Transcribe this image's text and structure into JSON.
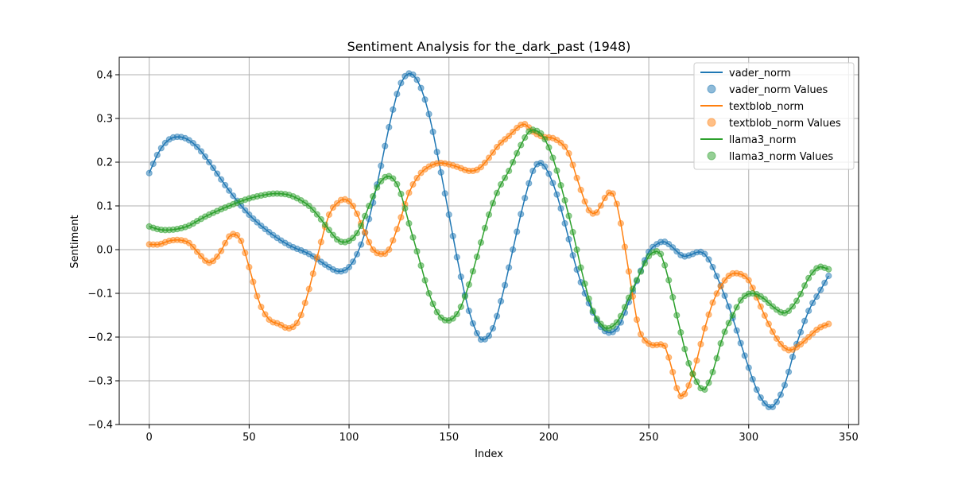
{
  "chart_data": {
    "type": "line",
    "title": "Sentiment Analysis for the_dark_past (1948)",
    "xlabel": "Index",
    "ylabel": "Sentiment",
    "xlim": [
      -15,
      355
    ],
    "ylim": [
      -0.4,
      0.44
    ],
    "xticks": [
      0,
      50,
      100,
      150,
      200,
      250,
      300,
      350
    ],
    "yticks": [
      -0.4,
      -0.3,
      -0.2,
      -0.1,
      0.0,
      0.1,
      0.2,
      0.3,
      0.4
    ],
    "ytick_labels": [
      "−0.4",
      "−0.3",
      "−0.2",
      "−0.1",
      "0.0",
      "0.1",
      "0.2",
      "0.3",
      "0.4"
    ],
    "grid": true,
    "legend_position": "top-right",
    "sample_step": 2,
    "x_max": 340,
    "series": [
      {
        "name": "vader_norm",
        "scatter_name": "vader_norm Values",
        "color": "#1f77b4",
        "keypoints": [
          [
            0,
            0.175
          ],
          [
            5,
            0.225
          ],
          [
            10,
            0.252
          ],
          [
            15,
            0.258
          ],
          [
            20,
            0.25
          ],
          [
            25,
            0.23
          ],
          [
            30,
            0.2
          ],
          [
            40,
            0.135
          ],
          [
            50,
            0.08
          ],
          [
            60,
            0.04
          ],
          [
            70,
            0.01
          ],
          [
            80,
            -0.01
          ],
          [
            90,
            -0.04
          ],
          [
            95,
            -0.05
          ],
          [
            100,
            -0.04
          ],
          [
            105,
            0.0
          ],
          [
            110,
            0.07
          ],
          [
            115,
            0.17
          ],
          [
            120,
            0.28
          ],
          [
            125,
            0.37
          ],
          [
            130,
            0.403
          ],
          [
            135,
            0.38
          ],
          [
            140,
            0.31
          ],
          [
            145,
            0.2
          ],
          [
            150,
            0.08
          ],
          [
            155,
            -0.04
          ],
          [
            160,
            -0.14
          ],
          [
            165,
            -0.2
          ],
          [
            168,
            -0.205
          ],
          [
            172,
            -0.18
          ],
          [
            177,
            -0.1
          ],
          [
            182,
            0.0
          ],
          [
            187,
            0.1
          ],
          [
            192,
            0.18
          ],
          [
            195,
            0.198
          ],
          [
            198,
            0.19
          ],
          [
            203,
            0.14
          ],
          [
            208,
            0.06
          ],
          [
            213,
            -0.03
          ],
          [
            218,
            -0.1
          ],
          [
            225,
            -0.17
          ],
          [
            230,
            -0.19
          ],
          [
            235,
            -0.175
          ],
          [
            240,
            -0.12
          ],
          [
            245,
            -0.06
          ],
          [
            250,
            -0.005
          ],
          [
            255,
            0.015
          ],
          [
            258,
            0.018
          ],
          [
            262,
            0.005
          ],
          [
            267,
            -0.015
          ],
          [
            272,
            -0.01
          ],
          [
            275,
            -0.005
          ],
          [
            278,
            -0.01
          ],
          [
            282,
            -0.04
          ],
          [
            290,
            -0.13
          ],
          [
            300,
            -0.27
          ],
          [
            305,
            -0.33
          ],
          [
            310,
            -0.36
          ],
          [
            313,
            -0.355
          ],
          [
            318,
            -0.31
          ],
          [
            323,
            -0.23
          ],
          [
            330,
            -0.14
          ],
          [
            335,
            -0.1
          ],
          [
            340,
            -0.06
          ]
        ]
      },
      {
        "name": "textblob_norm",
        "scatter_name": "textblob_norm Values",
        "color": "#ff7f0e",
        "keypoints": [
          [
            0,
            0.012
          ],
          [
            5,
            0.012
          ],
          [
            10,
            0.02
          ],
          [
            15,
            0.022
          ],
          [
            20,
            0.015
          ],
          [
            25,
            -0.01
          ],
          [
            30,
            -0.03
          ],
          [
            35,
            -0.01
          ],
          [
            40,
            0.03
          ],
          [
            43,
            0.035
          ],
          [
            46,
            0.02
          ],
          [
            50,
            -0.04
          ],
          [
            55,
            -0.12
          ],
          [
            60,
            -0.16
          ],
          [
            65,
            -0.17
          ],
          [
            70,
            -0.18
          ],
          [
            75,
            -0.16
          ],
          [
            80,
            -0.09
          ],
          [
            85,
            0.0
          ],
          [
            90,
            0.08
          ],
          [
            95,
            0.11
          ],
          [
            98,
            0.115
          ],
          [
            102,
            0.1
          ],
          [
            107,
            0.05
          ],
          [
            112,
            0.0
          ],
          [
            117,
            -0.01
          ],
          [
            120,
            0.0
          ],
          [
            125,
            0.06
          ],
          [
            130,
            0.13
          ],
          [
            135,
            0.17
          ],
          [
            140,
            0.19
          ],
          [
            145,
            0.198
          ],
          [
            150,
            0.195
          ],
          [
            155,
            0.188
          ],
          [
            160,
            0.18
          ],
          [
            165,
            0.185
          ],
          [
            170,
            0.21
          ],
          [
            175,
            0.24
          ],
          [
            180,
            0.26
          ],
          [
            185,
            0.282
          ],
          [
            188,
            0.287
          ],
          [
            192,
            0.27
          ],
          [
            197,
            0.258
          ],
          [
            202,
            0.255
          ],
          [
            207,
            0.24
          ],
          [
            210,
            0.22
          ],
          [
            215,
            0.15
          ],
          [
            220,
            0.09
          ],
          [
            224,
            0.085
          ],
          [
            227,
            0.11
          ],
          [
            230,
            0.13
          ],
          [
            233,
            0.12
          ],
          [
            236,
            0.06
          ],
          [
            240,
            -0.05
          ],
          [
            245,
            -0.18
          ],
          [
            250,
            -0.215
          ],
          [
            255,
            -0.218
          ],
          [
            258,
            -0.22
          ],
          [
            262,
            -0.28
          ],
          [
            265,
            -0.33
          ],
          [
            268,
            -0.33
          ],
          [
            273,
            -0.27
          ],
          [
            278,
            -0.18
          ],
          [
            283,
            -0.11
          ],
          [
            290,
            -0.06
          ],
          [
            295,
            -0.055
          ],
          [
            300,
            -0.07
          ],
          [
            305,
            -0.12
          ],
          [
            310,
            -0.17
          ],
          [
            315,
            -0.21
          ],
          [
            320,
            -0.23
          ],
          [
            325,
            -0.22
          ],
          [
            330,
            -0.2
          ],
          [
            335,
            -0.18
          ],
          [
            340,
            -0.17
          ]
        ]
      },
      {
        "name": "llama3_norm",
        "scatter_name": "llama3_norm Values",
        "color": "#2ca02c",
        "keypoints": [
          [
            0,
            0.053
          ],
          [
            5,
            0.046
          ],
          [
            10,
            0.045
          ],
          [
            15,
            0.048
          ],
          [
            20,
            0.055
          ],
          [
            25,
            0.068
          ],
          [
            30,
            0.08
          ],
          [
            40,
            0.1
          ],
          [
            50,
            0.117
          ],
          [
            60,
            0.127
          ],
          [
            65,
            0.128
          ],
          [
            70,
            0.125
          ],
          [
            75,
            0.115
          ],
          [
            80,
            0.1
          ],
          [
            85,
            0.075
          ],
          [
            90,
            0.045
          ],
          [
            95,
            0.02
          ],
          [
            100,
            0.02
          ],
          [
            105,
            0.045
          ],
          [
            110,
            0.1
          ],
          [
            115,
            0.15
          ],
          [
            120,
            0.168
          ],
          [
            125,
            0.14
          ],
          [
            130,
            0.06
          ],
          [
            135,
            -0.02
          ],
          [
            140,
            -0.1
          ],
          [
            145,
            -0.15
          ],
          [
            150,
            -0.162
          ],
          [
            155,
            -0.14
          ],
          [
            160,
            -0.08
          ],
          [
            165,
            0.0
          ],
          [
            170,
            0.08
          ],
          [
            175,
            0.14
          ],
          [
            180,
            0.18
          ],
          [
            185,
            0.23
          ],
          [
            190,
            0.27
          ],
          [
            193,
            0.273
          ],
          [
            197,
            0.26
          ],
          [
            202,
            0.21
          ],
          [
            207,
            0.13
          ],
          [
            212,
            0.04
          ],
          [
            217,
            -0.06
          ],
          [
            222,
            -0.14
          ],
          [
            227,
            -0.175
          ],
          [
            230,
            -0.18
          ],
          [
            235,
            -0.16
          ],
          [
            240,
            -0.11
          ],
          [
            245,
            -0.06
          ],
          [
            250,
            -0.015
          ],
          [
            253,
            -0.005
          ],
          [
            256,
            -0.01
          ],
          [
            260,
            -0.07
          ],
          [
            265,
            -0.17
          ],
          [
            270,
            -0.26
          ],
          [
            275,
            -0.31
          ],
          [
            278,
            -0.32
          ],
          [
            282,
            -0.28
          ],
          [
            287,
            -0.2
          ],
          [
            292,
            -0.15
          ],
          [
            297,
            -0.11
          ],
          [
            302,
            -0.1
          ],
          [
            307,
            -0.11
          ],
          [
            312,
            -0.13
          ],
          [
            317,
            -0.145
          ],
          [
            320,
            -0.14
          ],
          [
            325,
            -0.11
          ],
          [
            330,
            -0.065
          ],
          [
            335,
            -0.04
          ],
          [
            340,
            -0.045
          ]
        ]
      }
    ]
  }
}
